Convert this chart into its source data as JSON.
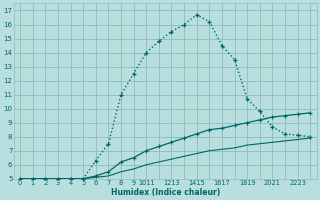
{
  "xlabel": "Humidex (Indice chaleur)",
  "bg_color": "#b8dede",
  "grid_color": "#8cbcbc",
  "line_color": "#006666",
  "xlim": [
    -0.5,
    23.5
  ],
  "ylim": [
    5,
    17.5
  ],
  "xtick_labels": [
    "0",
    "1",
    "2",
    "3",
    "4",
    "5",
    "6",
    "7",
    "8",
    "9",
    "1011",
    "1213",
    "1415",
    "1617",
    "1819",
    "2021",
    "2223"
  ],
  "yticks": [
    5,
    6,
    7,
    8,
    9,
    10,
    11,
    12,
    13,
    14,
    15,
    16,
    17
  ],
  "curve1_x": [
    0,
    1,
    2,
    3,
    4,
    5,
    6,
    7,
    8,
    9,
    10,
    11,
    12,
    13,
    14,
    15,
    16,
    17,
    18,
    19,
    20,
    21,
    22,
    23
  ],
  "curve1_y": [
    5,
    5,
    5,
    5,
    5,
    5,
    6.3,
    7.5,
    11.0,
    12.5,
    14.0,
    14.8,
    15.5,
    16.0,
    16.7,
    16.2,
    14.5,
    13.5,
    10.7,
    9.8,
    8.7,
    8.2,
    8.1,
    8.0
  ],
  "curve2_x": [
    0,
    1,
    2,
    3,
    4,
    5,
    6,
    7,
    8,
    9,
    10,
    11,
    12,
    13,
    14,
    15,
    16,
    17,
    18,
    19,
    20,
    21,
    22,
    23
  ],
  "curve2_y": [
    5,
    5,
    5,
    5,
    5,
    5,
    5.2,
    5.5,
    6.2,
    6.5,
    7.0,
    7.3,
    7.6,
    7.9,
    8.2,
    8.5,
    8.6,
    8.8,
    9.0,
    9.2,
    9.4,
    9.5,
    9.6,
    9.7
  ],
  "curve3_x": [
    0,
    1,
    2,
    3,
    4,
    5,
    6,
    7,
    8,
    9,
    10,
    11,
    12,
    13,
    14,
    15,
    16,
    17,
    18,
    19,
    20,
    21,
    22,
    23
  ],
  "curve3_y": [
    5,
    5,
    5,
    5,
    5,
    5,
    5.1,
    5.2,
    5.5,
    5.7,
    6.0,
    6.2,
    6.4,
    6.6,
    6.8,
    7.0,
    7.1,
    7.2,
    7.4,
    7.5,
    7.6,
    7.7,
    7.8,
    7.9
  ]
}
